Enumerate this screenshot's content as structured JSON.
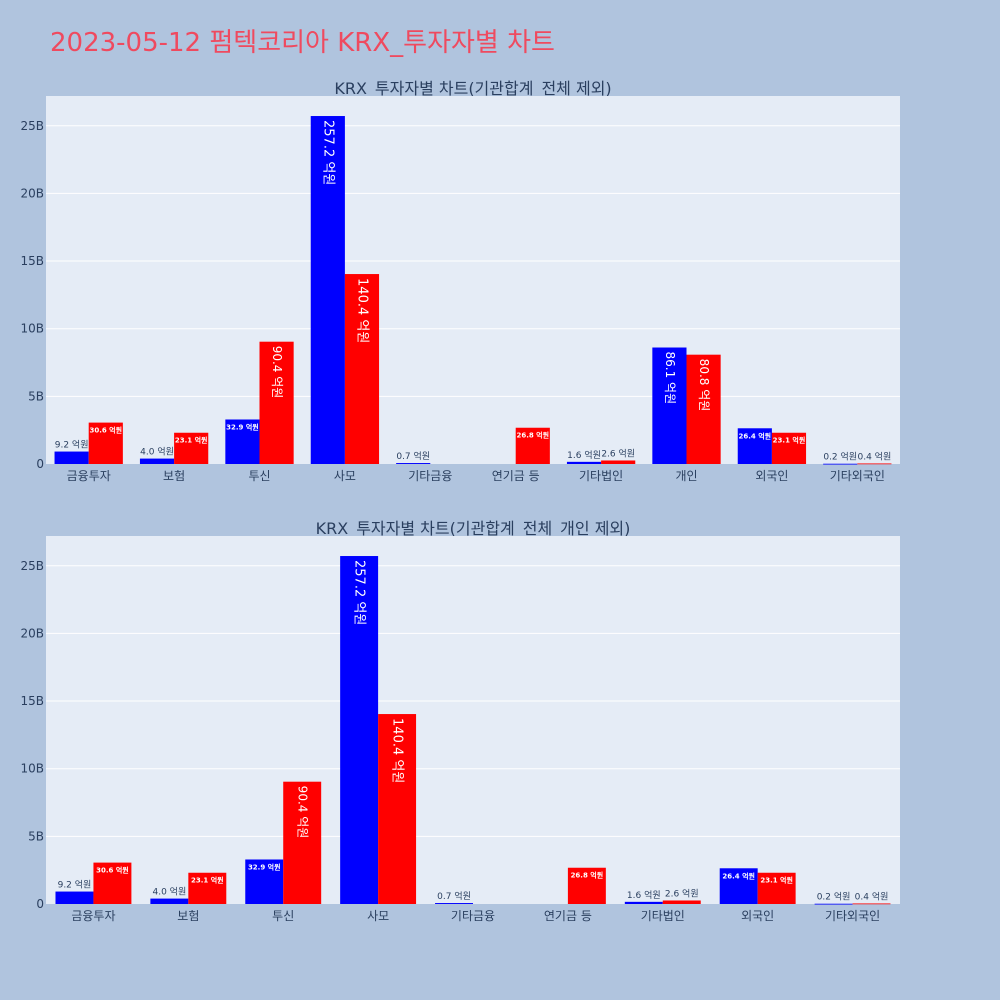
{
  "page_title": "2023-05-12 펌텍코리아 KRX_투자자별 차트",
  "colors": {
    "buy": "#0000ff",
    "sell": "#ff0000",
    "plot_bg": "#e5ecf6",
    "page_bg": "#b0c4de",
    "title": "#ef4a5f",
    "axis_text": "#2a3f5f"
  },
  "chart_data": [
    {
      "type": "bar",
      "title": "KRX_투자자별 차트(기관합계_전체 제외)",
      "categories": [
        "금융투자",
        "보험",
        "투신",
        "사모",
        "기타금융",
        "연기금 등",
        "기타법인",
        "개인",
        "외국인",
        "기타외국인"
      ],
      "series": [
        {
          "color": "blue",
          "values": [
            0.92,
            0.4,
            3.29,
            25.72,
            0.07,
            0,
            0.16,
            8.61,
            2.64,
            0.02
          ],
          "labels": [
            "9.2 억원",
            "4.0 억원",
            "32.9 억원",
            "257.2 억원",
            "0.7 억원",
            "",
            "1.6 억원",
            "86.1 억원",
            "26.4 억원",
            "0.2 억원"
          ]
        },
        {
          "color": "red",
          "values": [
            3.06,
            2.31,
            9.04,
            14.04,
            0,
            2.68,
            0.26,
            8.08,
            2.31,
            0.04
          ],
          "labels": [
            "30.6 억원",
            "23.1 억원",
            "90.4 억원",
            "140.4 억원",
            "",
            "26.8 억원",
            "2.6 억원",
            "80.8 억원",
            "23.1 억원",
            "0.4 억원"
          ]
        }
      ],
      "y_unit": "B",
      "yticks": [
        "0",
        "5B",
        "10B",
        "15B",
        "20B",
        "25B"
      ],
      "ylim": [
        0,
        27.2
      ],
      "grid": true
    },
    {
      "type": "bar",
      "title": "KRX_투자자별 차트(기관합계_전체_개인 제외)",
      "categories": [
        "금융투자",
        "보험",
        "투신",
        "사모",
        "기타금융",
        "연기금 등",
        "기타법인",
        "외국인",
        "기타외국인"
      ],
      "series": [
        {
          "color": "blue",
          "values": [
            0.92,
            0.4,
            3.29,
            25.72,
            0.07,
            0,
            0.16,
            2.64,
            0.02
          ],
          "labels": [
            "9.2 억원",
            "4.0 억원",
            "32.9 억원",
            "257.2 억원",
            "0.7 억원",
            "",
            "1.6 억원",
            "26.4 억원",
            "0.2 억원"
          ]
        },
        {
          "color": "red",
          "values": [
            3.06,
            2.31,
            9.04,
            14.04,
            0,
            2.68,
            0.26,
            2.31,
            0.04
          ],
          "labels": [
            "30.6 억원",
            "23.1 억원",
            "90.4 억원",
            "140.4 억원",
            "",
            "26.8 억원",
            "2.6 억원",
            "23.1 억원",
            "0.4 억원"
          ]
        }
      ],
      "y_unit": "B",
      "yticks": [
        "0",
        "5B",
        "10B",
        "15B",
        "20B",
        "25B"
      ],
      "ylim": [
        0,
        27.2
      ],
      "grid": true
    }
  ]
}
